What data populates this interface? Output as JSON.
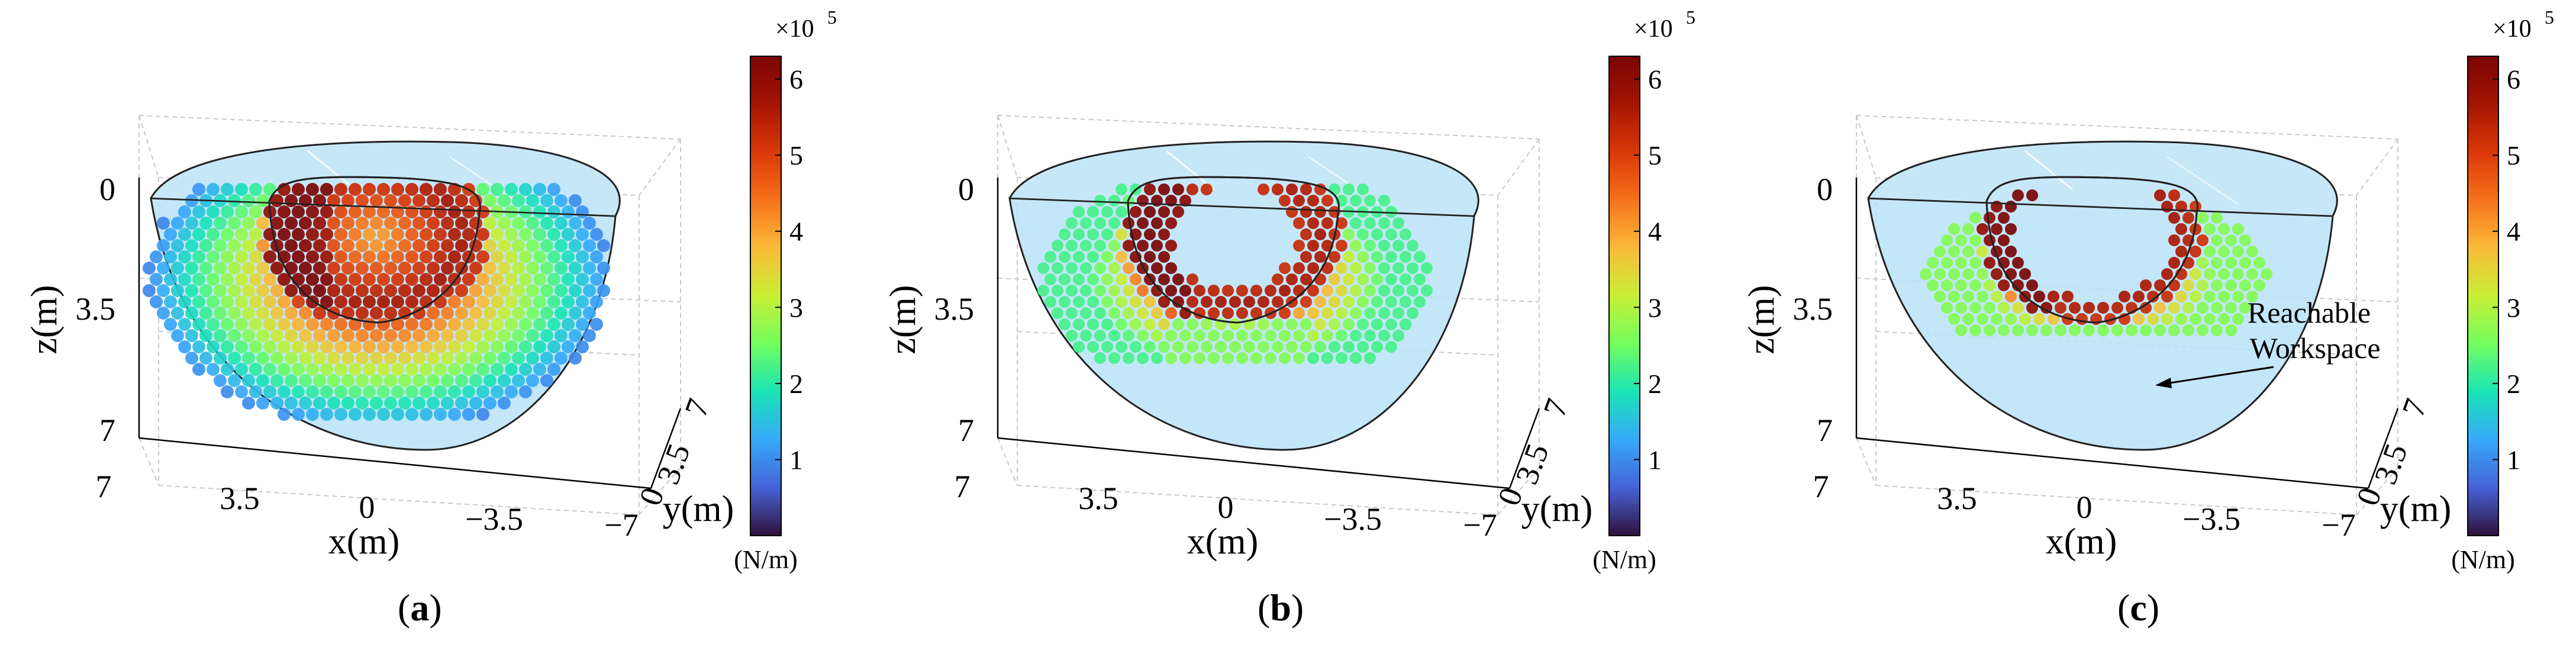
{
  "figure": {
    "panels": [
      {
        "id": "a",
        "label": "a"
      },
      {
        "id": "b",
        "label": "b"
      },
      {
        "id": "c",
        "label": "c"
      }
    ],
    "colorbar": {
      "multiplier": "×10",
      "exponent": "5",
      "ticks": [
        "1",
        "2",
        "3",
        "4",
        "5",
        "6"
      ],
      "unit": "(N/m)",
      "range": [
        0,
        6.3
      ]
    },
    "annotation": {
      "line1": "Reachable",
      "line2": "Workspace",
      "panel": "c"
    }
  },
  "chart_data": [
    {
      "type": "scatter",
      "subtype": "3d-scatter-colormap",
      "panel": "a",
      "xlabel": "x(m)",
      "ylabel": "y(m)",
      "zlabel": "z(m)",
      "x_ticks": [
        "7",
        "3.5",
        "0",
        "−3.5",
        "−7"
      ],
      "y_ticks": [
        "0",
        "3.5",
        "7"
      ],
      "z_ticks": [
        "0",
        "3.5",
        "7"
      ],
      "xlim": [
        -7,
        7
      ],
      "ylim": [
        0,
        7
      ],
      "zlim": [
        0,
        7
      ],
      "colorbar_label": "(N/m)",
      "color_range": [
        0,
        630000
      ],
      "description_points": "Dense stiffness samples filling most of the hemispherical workspace; values ~1.2e5 at outer edge rising to ~6e5 near the inner arc",
      "series": [
        {
          "name": "stiffness",
          "value_range_e5": [
            1.2,
            6.2
          ]
        }
      ]
    },
    {
      "type": "scatter",
      "subtype": "3d-scatter-colormap",
      "panel": "b",
      "xlabel": "x(m)",
      "ylabel": "y(m)",
      "zlabel": "z(m)",
      "x_ticks": [
        "7",
        "3.5",
        "0",
        "−3.5",
        "−7"
      ],
      "y_ticks": [
        "0",
        "3.5",
        "7"
      ],
      "z_ticks": [
        "0",
        "3.5",
        "7"
      ],
      "xlim": [
        -7,
        7
      ],
      "ylim": [
        0,
        7
      ],
      "zlim": [
        0,
        7
      ],
      "colorbar_label": "(N/m)",
      "color_range": [
        0,
        630000
      ],
      "series": [
        {
          "name": "stiffness",
          "value_range_e5": [
            2.5,
            6.2
          ]
        }
      ]
    },
    {
      "type": "scatter",
      "subtype": "3d-scatter-colormap",
      "panel": "c",
      "xlabel": "x(m)",
      "ylabel": "y(m)",
      "zlabel": "z(m)",
      "x_ticks": [
        "7",
        "3.5",
        "0",
        "−3.5",
        "−7"
      ],
      "y_ticks": [
        "0",
        "3.5",
        "7"
      ],
      "z_ticks": [
        "0",
        "3.5",
        "7"
      ],
      "xlim": [
        -7,
        7
      ],
      "ylim": [
        0,
        7
      ],
      "zlim": [
        0,
        7
      ],
      "colorbar_label": "(N/m)",
      "color_range": [
        0,
        630000
      ],
      "annotations": [
        "Reachable Workspace"
      ],
      "series": [
        {
          "name": "stiffness",
          "value_range_e5": [
            3.0,
            6.2
          ]
        }
      ]
    }
  ]
}
